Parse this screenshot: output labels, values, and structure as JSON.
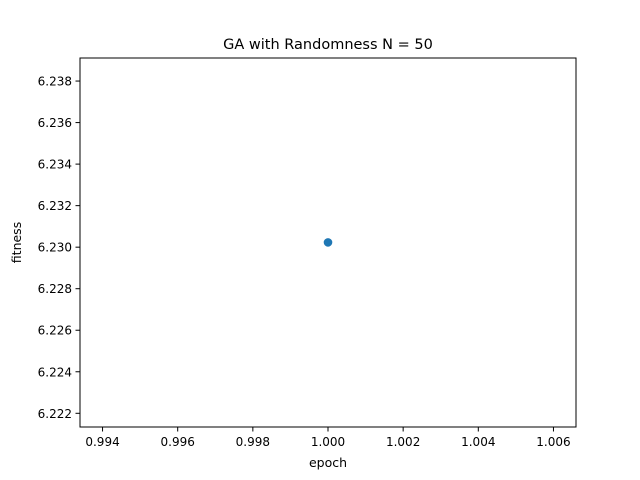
{
  "chart_data": {
    "type": "scatter",
    "title": "GA with Randomness N = 50",
    "xlabel": "epoch",
    "ylabel": "fitness",
    "xlim": [
      0.9934,
      1.0066
    ],
    "ylim": [
      6.22134,
      6.23911
    ],
    "xticks": [
      "0.994",
      "0.996",
      "0.998",
      "1.000",
      "1.002",
      "1.004",
      "1.006"
    ],
    "yticks": [
      "6.222",
      "6.224",
      "6.226",
      "6.228",
      "6.230",
      "6.232",
      "6.234",
      "6.236",
      "6.238"
    ],
    "grid": false,
    "series": [
      {
        "points": [
          {
            "x": 1.0,
            "y": 6.23023
          }
        ],
        "color": "#1f77b4"
      }
    ]
  }
}
